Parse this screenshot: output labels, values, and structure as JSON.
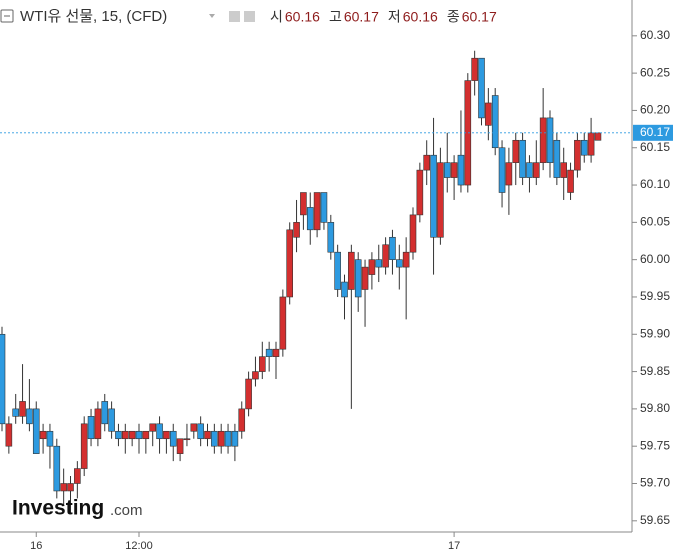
{
  "chart_data": {
    "type": "candlestick",
    "title": "WTI유 선물, 15, (CFD)",
    "ohlc_legend": [
      {
        "label": "시",
        "value": 60.16
      },
      {
        "label": "고",
        "value": 60.17
      },
      {
        "label": "저",
        "value": 60.16
      },
      {
        "label": "종",
        "value": 60.17
      }
    ],
    "brand": {
      "name": "Investing",
      "suffix": ".com"
    },
    "categories": [
      null,
      null,
      null,
      null,
      null,
      "16",
      null,
      null,
      null,
      null,
      null,
      null,
      null,
      null,
      null,
      null,
      null,
      null,
      null,
      null,
      "12:00",
      null,
      null,
      null,
      null,
      null,
      null,
      null,
      null,
      null,
      null,
      null,
      null,
      null,
      null,
      null,
      null,
      null,
      null,
      null,
      null,
      null,
      null,
      null,
      null,
      null,
      null,
      null,
      null,
      null,
      null,
      null,
      null,
      null,
      null,
      null,
      null,
      null,
      null,
      null,
      null,
      null,
      null,
      null,
      null,
      null,
      "17",
      null,
      null,
      null,
      null,
      null,
      null,
      null,
      null,
      null,
      null,
      null,
      null,
      null,
      null,
      null,
      null,
      null,
      null,
      null,
      null,
      null
    ],
    "open": [
      59.9,
      59.75,
      59.8,
      59.79,
      59.8,
      59.8,
      59.76,
      59.77,
      59.75,
      59.69,
      59.69,
      59.7,
      59.72,
      59.79,
      59.76,
      59.81,
      59.8,
      59.77,
      59.76,
      59.76,
      59.77,
      59.76,
      59.77,
      59.78,
      59.76,
      59.77,
      59.74,
      59.76,
      59.77,
      59.78,
      59.76,
      59.77,
      59.75,
      59.77,
      59.77,
      59.77,
      59.8,
      59.84,
      59.85,
      59.88,
      59.87,
      59.88,
      59.95,
      60.03,
      60.06,
      60.07,
      60.04,
      60.09,
      60.05,
      60.01,
      59.97,
      59.96,
      60.0,
      59.96,
      59.98,
      60.0,
      59.99,
      60.03,
      60.0,
      59.99,
      60.01,
      60.06,
      60.12,
      60.14,
      60.03,
      60.13,
      60.11,
      60.14,
      60.1,
      60.24,
      60.27,
      60.18,
      60.22,
      60.15,
      60.1,
      60.13,
      60.16,
      60.13,
      60.11,
      60.13,
      60.19,
      60.16,
      60.11,
      60.09,
      60.12,
      60.16,
      60.14,
      60.16
    ],
    "high": [
      59.91,
      59.79,
      59.82,
      59.86,
      59.84,
      59.81,
      59.78,
      59.78,
      59.76,
      59.72,
      59.71,
      59.73,
      59.79,
      59.8,
      59.81,
      59.82,
      59.81,
      59.78,
      59.78,
      59.77,
      59.78,
      59.77,
      59.78,
      59.79,
      59.77,
      59.78,
      59.76,
      59.78,
      59.78,
      59.79,
      59.78,
      59.78,
      59.78,
      59.78,
      59.78,
      59.81,
      59.85,
      59.87,
      59.89,
      59.89,
      59.89,
      59.96,
      60.05,
      60.08,
      60.09,
      60.09,
      60.09,
      60.09,
      60.06,
      60.02,
      59.98,
      60.02,
      60.01,
      60.0,
      60.01,
      60.02,
      60.03,
      60.04,
      60.02,
      60.03,
      60.07,
      60.13,
      60.16,
      60.19,
      60.15,
      60.17,
      60.14,
      60.2,
      60.25,
      60.28,
      60.27,
      60.23,
      60.23,
      60.16,
      60.15,
      60.17,
      60.17,
      60.14,
      60.16,
      60.23,
      60.2,
      60.17,
      60.15,
      60.13,
      60.17,
      60.17,
      60.19,
      60.17
    ],
    "low": [
      59.77,
      59.74,
      59.78,
      59.78,
      59.77,
      59.74,
      59.74,
      59.72,
      59.68,
      59.67,
      59.66,
      59.68,
      59.71,
      59.75,
      59.75,
      59.77,
      59.76,
      59.75,
      59.74,
      59.75,
      59.74,
      59.74,
      59.75,
      59.74,
      59.74,
      59.73,
      59.73,
      59.75,
      59.76,
      59.75,
      59.75,
      59.74,
      59.74,
      59.74,
      59.73,
      59.76,
      59.79,
      59.83,
      59.84,
      59.85,
      59.84,
      59.87,
      59.94,
      60.01,
      60.04,
      60.02,
      60.03,
      60.04,
      60.0,
      59.95,
      59.92,
      59.8,
      59.93,
      59.91,
      59.96,
      59.97,
      59.98,
      59.98,
      59.96,
      59.92,
      60.0,
      60.05,
      60.1,
      59.98,
      60.02,
      60.09,
      60.08,
      60.09,
      60.09,
      60.22,
      60.18,
      60.16,
      60.14,
      60.07,
      60.06,
      60.1,
      60.1,
      60.09,
      60.1,
      60.12,
      60.11,
      60.1,
      60.08,
      60.08,
      60.11,
      60.13,
      60.13,
      60.16
    ],
    "close": [
      59.78,
      59.78,
      59.79,
      59.81,
      59.78,
      59.74,
      59.77,
      59.75,
      59.69,
      59.7,
      59.7,
      59.72,
      59.78,
      59.76,
      59.8,
      59.78,
      59.77,
      59.76,
      59.77,
      59.77,
      59.76,
      59.77,
      59.78,
      59.76,
      59.77,
      59.75,
      59.76,
      59.76,
      59.78,
      59.76,
      59.77,
      59.75,
      59.77,
      59.75,
      59.75,
      59.8,
      59.84,
      59.85,
      59.87,
      59.87,
      59.88,
      59.95,
      60.04,
      60.05,
      60.09,
      60.04,
      60.09,
      60.05,
      60.01,
      59.96,
      59.95,
      60.01,
      59.95,
      59.99,
      60.0,
      59.99,
      60.02,
      60.0,
      59.99,
      60.01,
      60.06,
      60.12,
      60.14,
      60.03,
      60.13,
      60.11,
      60.13,
      60.1,
      60.24,
      60.27,
      60.19,
      60.21,
      60.15,
      60.09,
      60.13,
      60.16,
      60.11,
      60.11,
      60.13,
      60.19,
      60.13,
      60.11,
      60.13,
      60.12,
      60.16,
      60.14,
      60.17,
      60.17
    ],
    "up_color": "#d32f2f",
    "down_color": "#2d9ae0",
    "last_price": 60.17,
    "last_price_color": "#2d9ae0",
    "ylim": [
      59.635,
      60.348
    ],
    "yticks": [
      59.65,
      {
        "value": 59.7,
        "label": "59.70"
      },
      59.75,
      {
        "value": 59.8,
        "label": "59.80"
      },
      59.85,
      {
        "value": 59.9,
        "label": "59.90"
      },
      59.95,
      {
        "value": 60,
        "label": "60.00"
      },
      60.05,
      {
        "value": 60.1,
        "label": "60.10"
      },
      60.15,
      {
        "value": 60.2,
        "label": "60.20"
      },
      60.25,
      {
        "value": 60.3,
        "label": "60.30"
      }
    ],
    "grid": false
  }
}
